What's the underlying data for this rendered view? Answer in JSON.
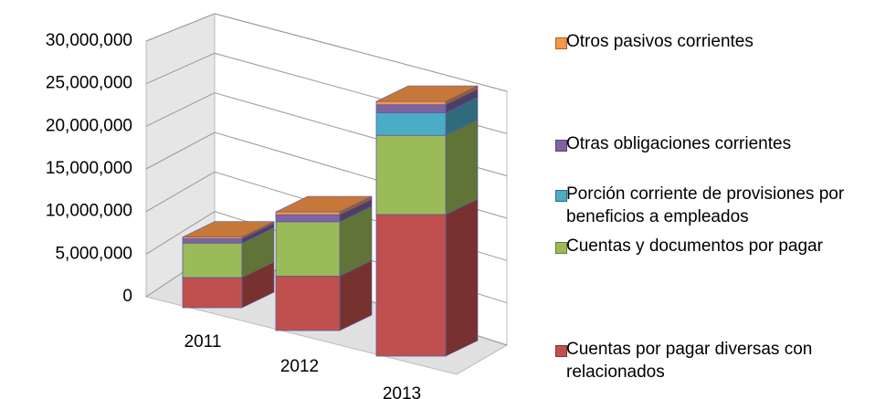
{
  "chart_data": {
    "type": "bar3d_stacked",
    "categories": [
      "2011",
      "2012",
      "2013"
    ],
    "series": [
      {
        "name": "Cuentas por pagar diversas con relacionados",
        "color": "#c0504d",
        "values": [
          3500000,
          5500000,
          12500000
        ]
      },
      {
        "name": "Cuentas y documentos por pagar",
        "color": "#9bbb59",
        "values": [
          4000000,
          5500000,
          7000000
        ]
      },
      {
        "name": "Porción corriente de provisiones por beneficios a empleados",
        "color": "#4bacc6",
        "values": [
          0,
          0,
          2000000
        ]
      },
      {
        "name": "Otras obligaciones corrientes",
        "color": "#8064a2",
        "values": [
          500000,
          700000,
          700000
        ]
      },
      {
        "name": "Otros pasivos corrientes",
        "color": "#f79646",
        "values": [
          200000,
          300000,
          300000
        ]
      }
    ],
    "ylim": [
      0,
      30000000
    ],
    "yticks": [
      {
        "value": 0,
        "label": "0"
      },
      {
        "value": 5000000,
        "label": "5,000,000"
      },
      {
        "value": 10000000,
        "label": "10,000,000"
      },
      {
        "value": 15000000,
        "label": "15,000,000"
      },
      {
        "value": 20000000,
        "label": "20,000,000"
      },
      {
        "value": 25000000,
        "label": "25,000,000"
      },
      {
        "value": 30000000,
        "label": "30,000,000"
      }
    ],
    "grid": true,
    "legend": "right"
  }
}
